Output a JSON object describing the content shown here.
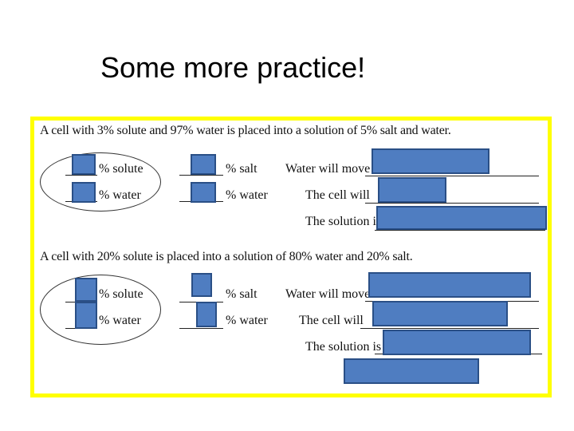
{
  "slide": {
    "title": "Some more practice!"
  },
  "problem1": {
    "statement": "A cell with 3% solute and 97% water is placed into a solution of 5% salt and water.",
    "cell_labels": [
      "% solute",
      "% water"
    ],
    "solution_labels": [
      "% salt",
      "% water"
    ],
    "answers": [
      "Water will move",
      "The cell will",
      "The solution is"
    ]
  },
  "problem2": {
    "statement": "A cell with 20% solute is placed into a solution of 80% water and 20% salt.",
    "cell_labels": [
      "% solute",
      "% water"
    ],
    "solution_labels": [
      "% salt",
      "% water"
    ],
    "answers": [
      "Water will move",
      "The cell will",
      "The solution is"
    ]
  },
  "colors": {
    "frame": "#ffff00",
    "answer_box": "#4f7dc1"
  }
}
